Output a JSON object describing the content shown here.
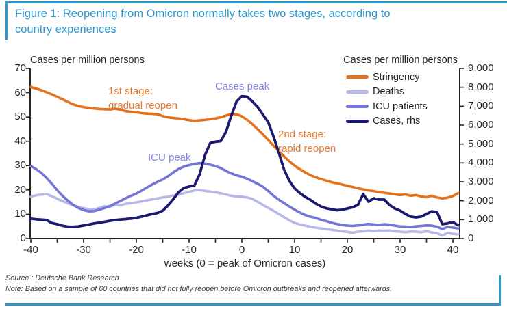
{
  "figure": {
    "title_lines": [
      "Figure 1: Reopening from Omicron normally takes two stages, according to",
      "country experiences"
    ],
    "source": "Source : Deutsche Bank Research",
    "note": "Note: Based on a sample of 60 countries that did not fully reopen before Omicron outbreaks and reopened afterwards.",
    "accent_color": "#2c98cf",
    "axis_color": "#262626"
  },
  "chart_data": {
    "type": "line",
    "grid": false,
    "legend_position": "top-right",
    "left_axis": {
      "label": "Cases per million persons",
      "range": [
        0,
        70
      ],
      "tick_values": [
        0,
        10,
        20,
        30,
        40,
        50,
        60,
        70
      ],
      "tick_labels": [
        "0",
        "10",
        "20",
        "30",
        "40",
        "50",
        "60",
        "70"
      ]
    },
    "right_axis": {
      "label": "Cases per million persons",
      "range": [
        0,
        9000
      ],
      "tick_values": [
        0,
        1000,
        2000,
        3000,
        4000,
        5000,
        6000,
        7000,
        8000,
        9000
      ],
      "tick_labels": [
        "0",
        "1,000",
        "2,000",
        "3,000",
        "4,000",
        "5,000",
        "6,000",
        "7,000",
        "8,000",
        "9,000"
      ]
    },
    "x_axis": {
      "label": "weeks (0 = peak of Omicron cases)",
      "range": [
        -40,
        41.3
      ],
      "minor_tick_step": 5,
      "tick_values": [
        -40,
        -30,
        -20,
        -10,
        0,
        10,
        20,
        30,
        40
      ],
      "tick_labels": [
        "-40",
        "-30",
        "-20",
        "-10",
        "0",
        "10",
        "20",
        "30",
        "40"
      ]
    },
    "x": [
      -40,
      -39,
      -38,
      -37,
      -36,
      -35,
      -34,
      -33,
      -32,
      -31,
      -30,
      -29,
      -28,
      -27,
      -26,
      -25,
      -24,
      -23,
      -22,
      -21,
      -20,
      -19,
      -18,
      -17,
      -16,
      -15,
      -14,
      -13,
      -12,
      -11,
      -10,
      -9,
      -8,
      -7,
      -6,
      -5,
      -4,
      -3,
      -2,
      -1,
      0,
      1,
      2,
      3,
      4,
      5,
      6,
      7,
      8,
      9,
      10,
      11,
      12,
      13,
      14,
      15,
      16,
      17,
      18,
      19,
      20,
      21,
      22,
      23,
      24,
      25,
      26,
      27,
      28,
      29,
      30,
      31,
      32,
      33,
      34,
      35,
      36,
      37,
      38,
      39,
      40,
      41
    ],
    "series": [
      {
        "name": "Stringency",
        "axis": "left",
        "color": "#e4711c",
        "width": 3.6,
        "values": [
          62.3,
          61.7,
          61.0,
          60.2,
          59.3,
          58.3,
          57.3,
          56.2,
          55.2,
          54.5,
          54.1,
          53.7,
          53.5,
          53.3,
          53.2,
          53.1,
          53.4,
          52.9,
          52.4,
          52.1,
          51.9,
          51.6,
          51.4,
          51.3,
          51.1,
          50.4,
          49.9,
          49.6,
          49.4,
          49.1,
          48.7,
          48.4,
          48.6,
          48.8,
          49.1,
          49.4,
          49.9,
          50.6,
          51.2,
          51.1,
          50.3,
          48.8,
          47.0,
          45.0,
          42.8,
          40.5,
          38.2,
          36.0,
          33.8,
          31.8,
          30.0,
          28.5,
          27.2,
          26.1,
          25.2,
          24.5,
          23.8,
          23.2,
          22.7,
          22.2,
          21.7,
          21.2,
          20.7,
          20.2,
          19.8,
          19.5,
          19.1,
          18.8,
          18.5,
          18.2,
          17.9,
          18.2,
          17.6,
          17.9,
          17.3,
          17.0,
          17.6,
          16.9,
          16.5,
          16.8,
          17.5,
          18.7
        ]
      },
      {
        "name": "Deaths",
        "axis": "left",
        "color": "#b6b8ea",
        "width": 3.6,
        "values": [
          17.2,
          17.8,
          18.1,
          18.3,
          17.4,
          16.4,
          15.4,
          14.5,
          13.7,
          13.0,
          12.5,
          12.1,
          12.0,
          12.6,
          13.3,
          13.1,
          13.9,
          13.6,
          14.3,
          14.6,
          14.9,
          15.3,
          15.7,
          16.1,
          16.5,
          16.9,
          17.2,
          17.7,
          18.1,
          18.6,
          19.2,
          19.8,
          19.9,
          19.6,
          19.3,
          19.0,
          18.6,
          18.1,
          17.6,
          17.3,
          17.2,
          16.9,
          16.3,
          15.1,
          13.8,
          12.6,
          11.4,
          10.1,
          8.8,
          7.5,
          6.4,
          5.8,
          5.3,
          4.9,
          4.5,
          4.2,
          3.9,
          3.6,
          3.3,
          3.0,
          2.7,
          2.4,
          2.8,
          3.0,
          3.3,
          3.1,
          3.3,
          3.2,
          3.3,
          3.0,
          2.8,
          2.6,
          2.9,
          2.8,
          2.6,
          3.0,
          2.5,
          2.2,
          1.2,
          2.3,
          1.9,
          1.7
        ]
      },
      {
        "name": "ICU patients",
        "axis": "left",
        "color": "#7476d6",
        "width": 3.6,
        "values": [
          29.8,
          28.6,
          27.0,
          24.9,
          22.5,
          19.9,
          17.6,
          15.6,
          13.9,
          12.6,
          11.7,
          11.2,
          11.3,
          11.9,
          12.6,
          13.4,
          14.4,
          15.5,
          16.6,
          17.6,
          18.5,
          19.7,
          21.0,
          22.2,
          23.3,
          24.3,
          25.6,
          27.2,
          28.6,
          29.6,
          30.2,
          30.7,
          31.0,
          30.8,
          30.4,
          29.8,
          29.0,
          27.8,
          26.8,
          26.0,
          25.4,
          24.6,
          23.6,
          22.5,
          21.3,
          19.5,
          17.6,
          16.0,
          14.6,
          13.2,
          11.9,
          10.7,
          9.7,
          9.0,
          8.5,
          7.7,
          7.2,
          6.5,
          6.0,
          5.6,
          5.3,
          5.2,
          5.4,
          5.7,
          6.0,
          5.8,
          5.6,
          5.9,
          5.7,
          5.3,
          5.0,
          4.9,
          4.8,
          5.0,
          5.2,
          5.4,
          5.3,
          4.9,
          3.9,
          4.8,
          4.5,
          4.2
        ]
      },
      {
        "name": "Cases, rhs",
        "axis": "right",
        "color": "#1c1a70",
        "width": 3.8,
        "values": [
          1050,
          1020,
          1000,
          980,
          820,
          760,
          680,
          630,
          620,
          640,
          690,
          740,
          800,
          840,
          890,
          940,
          980,
          1010,
          1030,
          1060,
          1100,
          1160,
          1230,
          1300,
          1350,
          1470,
          1750,
          2080,
          2450,
          2670,
          2750,
          2800,
          3400,
          4400,
          5050,
          5120,
          5150,
          5650,
          6500,
          7250,
          7530,
          7500,
          7250,
          6950,
          6550,
          6150,
          5400,
          4550,
          3650,
          3050,
          2650,
          2400,
          2200,
          2050,
          1850,
          1700,
          1600,
          1550,
          1500,
          1520,
          1590,
          1660,
          1780,
          2350,
          1950,
          2130,
          2060,
          2060,
          1770,
          1590,
          1480,
          1300,
          1160,
          1120,
          1160,
          1300,
          1440,
          1400,
          760,
          800,
          870,
          700
        ]
      }
    ],
    "annotations": [
      {
        "id": "stage1",
        "lines": [
          "1st stage:",
          "gradual reopen"
        ],
        "color": "#e87a2e"
      },
      {
        "id": "cases-peak",
        "lines": [
          "Cases peak"
        ],
        "color": "#8185e0"
      },
      {
        "id": "stage2",
        "lines": [
          "2nd stage:",
          "rapid reopen"
        ],
        "color": "#e87a2e"
      },
      {
        "id": "icu-peak",
        "lines": [
          "ICU peak"
        ],
        "color": "#8185e0"
      }
    ]
  }
}
